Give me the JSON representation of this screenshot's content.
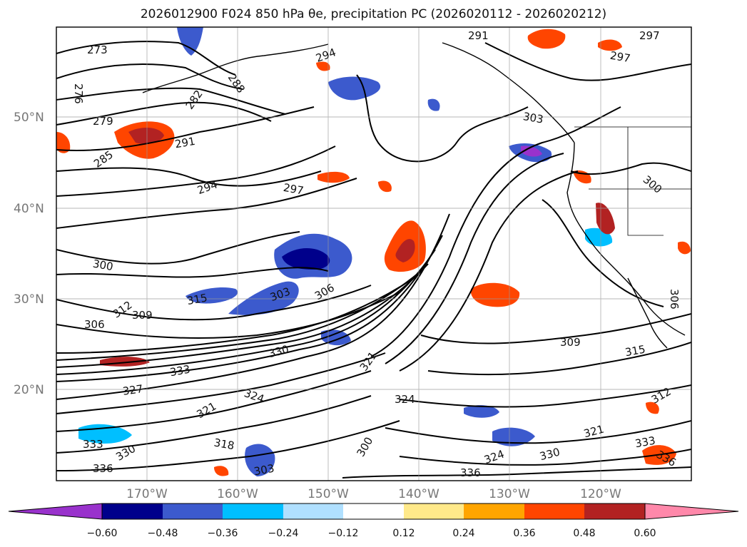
{
  "title": "2026012900 F024 850 hPa θe, precipitation PC (2026020112 - 2026020212)",
  "map": {
    "lat_labels": [
      "50°N",
      "40°N",
      "30°N",
      "20°N"
    ],
    "lon_labels": [
      "170°W",
      "160°W",
      "150°W",
      "140°W",
      "130°W",
      "120°W"
    ],
    "contour_labels": [
      "273",
      "276",
      "279",
      "282",
      "285",
      "288",
      "291",
      "294",
      "297",
      "300",
      "303",
      "306",
      "309",
      "312",
      "315",
      "318",
      "321",
      "324",
      "327",
      "330",
      "333",
      "336",
      "291",
      "297",
      "294",
      "297",
      "300",
      "303",
      "306",
      "309",
      "315",
      "312",
      "321",
      "324",
      "330",
      "333",
      "336",
      "321",
      "324",
      "330",
      "333",
      "336",
      "300",
      "303",
      "306"
    ],
    "colorbar": {
      "tick_labels": [
        "−0.60",
        "−0.48",
        "−0.36",
        "−0.24",
        "−0.12",
        "0.12",
        "0.24",
        "0.36",
        "0.48",
        "0.60"
      ],
      "colors": [
        "#9932cc",
        "#00008b",
        "#3c5acd",
        "#00bfff",
        "#b0e0ff",
        "#ffffff",
        "#ffe98a",
        "#ffa500",
        "#ff4500",
        "#b22222",
        "#ff88aa"
      ]
    }
  }
}
